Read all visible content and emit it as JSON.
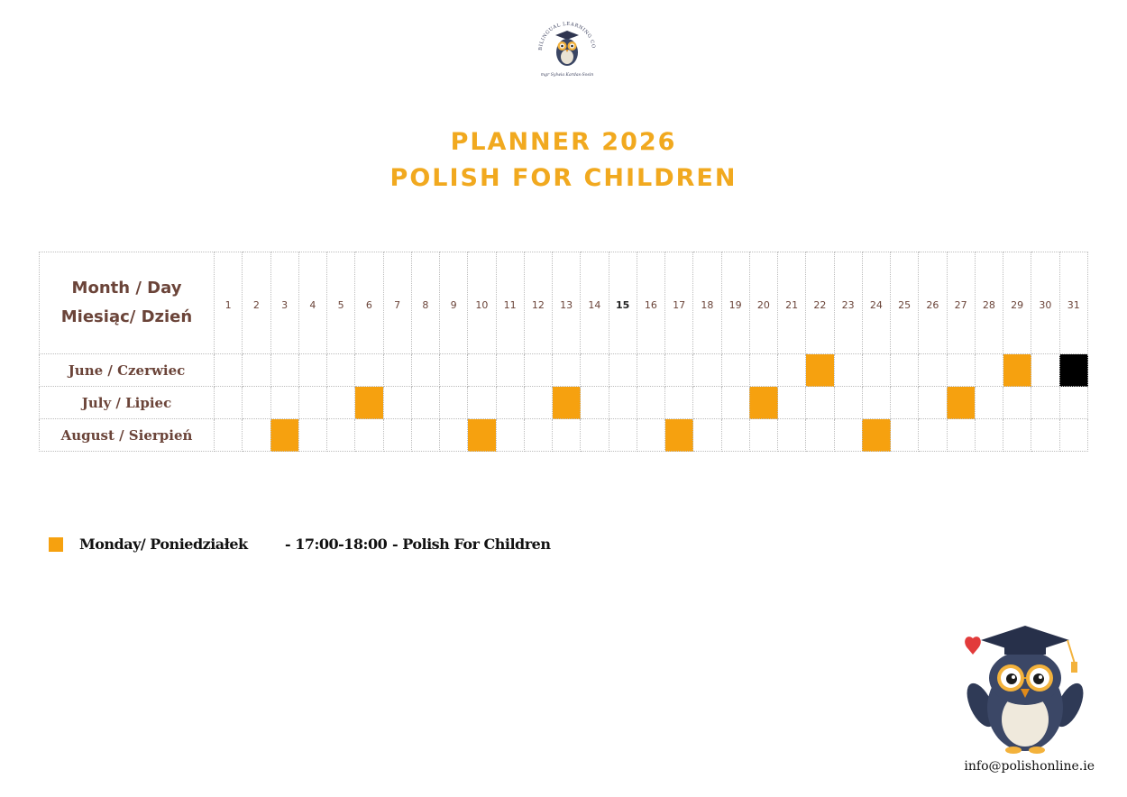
{
  "logo": {
    "ring_text": "BILINGUAL LEARNING CONSULTANCY",
    "signature": "mgr Sylwia Kardas-Sosin"
  },
  "title": {
    "line1": "PLANNER 2026",
    "line2": "POLISH FOR CHILDREN"
  },
  "table": {
    "header_line1": "Month / Day",
    "header_line2": "Miesiąc/ Dzień",
    "days": [
      "1",
      "2",
      "3",
      "4",
      "5",
      "6",
      "7",
      "8",
      "9",
      "10",
      "11",
      "12",
      "13",
      "14",
      "15",
      "16",
      "17",
      "18",
      "19",
      "20",
      "21",
      "22",
      "23",
      "24",
      "25",
      "26",
      "27",
      "28",
      "29",
      "30",
      "31"
    ],
    "bold_day": "15",
    "rows": [
      {
        "label": "June / Czerwiec",
        "orange_days": [
          22,
          29
        ],
        "black_days": [
          31
        ]
      },
      {
        "label": "July / Lipiec",
        "orange_days": [
          6,
          13,
          20,
          27
        ],
        "black_days": []
      },
      {
        "label": "August / Sierpień",
        "orange_days": [
          3,
          10,
          17,
          24
        ],
        "black_days": []
      }
    ]
  },
  "legend": {
    "day": "Monday/ Poniedziałek",
    "time": "- 17:00-18:00",
    "course": "- Polish For Children"
  },
  "email": "info@polishonline.ie",
  "colors": {
    "accent": "#f1a91f",
    "marker": "#f6a10f",
    "closed": "#000000",
    "label": "#6b4439"
  }
}
